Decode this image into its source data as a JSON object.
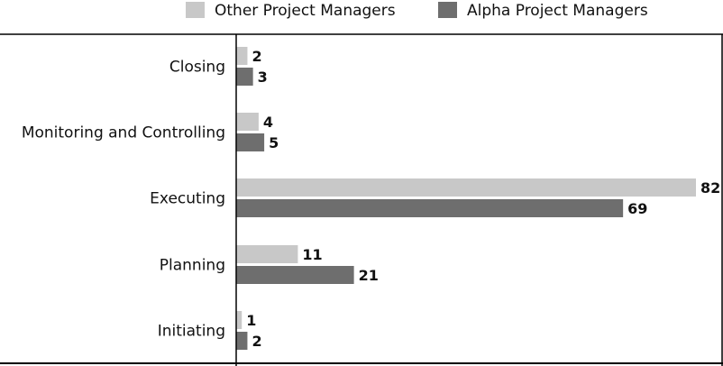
{
  "chart_data": {
    "type": "bar",
    "orientation": "horizontal",
    "categories": [
      "Initiating",
      "Planning",
      "Executing",
      "Monitoring and Controlling",
      "Closing"
    ],
    "series": [
      {
        "name": "Other Project Managers",
        "color": "#c8c8c8",
        "values": [
          1,
          11,
          82,
          4,
          2
        ]
      },
      {
        "name": "Alpha Project Managers",
        "color": "#6e6e6e",
        "values": [
          2,
          21,
          69,
          5,
          3
        ]
      }
    ],
    "xlim": [
      0,
      82
    ],
    "legend_position": "top",
    "grid": false,
    "title": "",
    "xlabel": "",
    "ylabel": ""
  }
}
